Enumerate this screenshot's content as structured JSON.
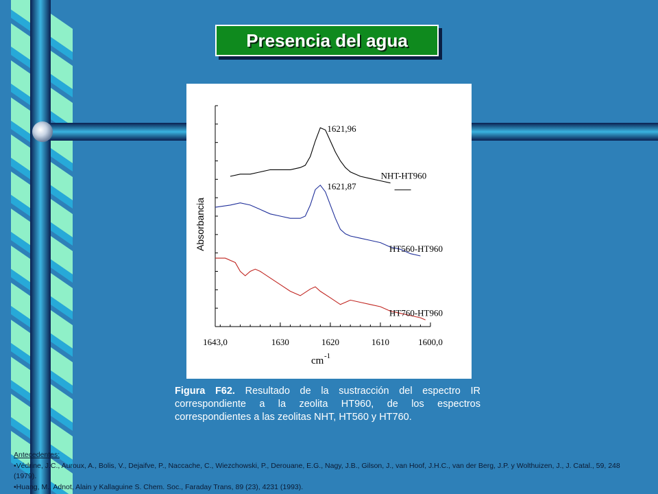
{
  "title": "Presencia del agua",
  "chart_data": {
    "type": "line",
    "ylabel": "Absorbancia",
    "xlabel_base": "cm",
    "xlabel_sup": "-1",
    "x_ticks": [
      {
        "value": 1643.0,
        "label": "1643,0"
      },
      {
        "value": 1630,
        "label": "1630"
      },
      {
        "value": 1620,
        "label": "1620"
      },
      {
        "value": 1610,
        "label": "1610"
      },
      {
        "value": 1600.0,
        "label": "1600,0"
      }
    ],
    "xlim": [
      1643.0,
      1600.0
    ],
    "ylim": [
      0,
      1
    ],
    "series": [
      {
        "name": "NHT-HT960",
        "color": "#000000",
        "peak_label": "1621,96",
        "x": [
          1640,
          1638,
          1636,
          1634,
          1632,
          1630,
          1628,
          1626,
          1625,
          1624,
          1623,
          1622,
          1621,
          1620,
          1619,
          1618,
          1617,
          1616,
          1614,
          1612,
          1610,
          1608
        ],
        "y": [
          0.68,
          0.69,
          0.69,
          0.7,
          0.71,
          0.71,
          0.71,
          0.72,
          0.73,
          0.77,
          0.84,
          0.9,
          0.89,
          0.84,
          0.79,
          0.75,
          0.72,
          0.7,
          0.68,
          0.67,
          0.66,
          0.65
        ]
      },
      {
        "name": "HT560-HT960",
        "color": "#1f2f9a",
        "peak_label": "1621,87",
        "x": [
          1643,
          1640,
          1638,
          1636,
          1634,
          1632,
          1630,
          1628,
          1626,
          1625,
          1624,
          1623,
          1622,
          1621,
          1620,
          1619,
          1618,
          1617,
          1616,
          1614,
          1612,
          1610,
          1608,
          1606,
          1604,
          1602
        ],
        "y": [
          0.54,
          0.55,
          0.56,
          0.55,
          0.53,
          0.51,
          0.5,
          0.49,
          0.49,
          0.5,
          0.55,
          0.62,
          0.64,
          0.61,
          0.55,
          0.49,
          0.44,
          0.42,
          0.41,
          0.4,
          0.39,
          0.38,
          0.36,
          0.35,
          0.33,
          0.32
        ]
      },
      {
        "name": "HT760-HT960",
        "color": "#c0241f",
        "x": [
          1643,
          1641,
          1639,
          1638,
          1637,
          1636,
          1635,
          1634,
          1632,
          1630,
          1628,
          1626,
          1624,
          1623,
          1622,
          1620,
          1618,
          1617,
          1616,
          1614,
          1612,
          1610,
          1608,
          1606,
          1604,
          1602,
          1601
        ],
        "y": [
          0.31,
          0.31,
          0.29,
          0.25,
          0.23,
          0.25,
          0.26,
          0.25,
          0.22,
          0.19,
          0.16,
          0.14,
          0.17,
          0.18,
          0.16,
          0.13,
          0.1,
          0.11,
          0.12,
          0.11,
          0.1,
          0.09,
          0.07,
          0.06,
          0.05,
          0.04,
          0.03
        ]
      }
    ]
  },
  "caption": {
    "label": "Figura F62.",
    "text": " Resultado de la sustracción del espectro IR correspondiente a la zeolita HT960, de los espectros correspondientes a las zeolitas NHT, HT560 y HT760."
  },
  "references": {
    "heading": "Antecedentes:",
    "items": [
      "•Védrine, J.C., Auroux, A., Bolis, V., Dejaifve, P., Naccache, C., Wiezchowski, P., Derouane, E.G., Nagy, J.B., Gilson, J., van Hoof, J.H.C., van der Berg, J.P. y Wolthuizen, J., J. Catal., 59, 248 (1979).",
      "•Huang, M., Adnot, Alain y Kallaguine S. Chem. Soc., Faraday Trans, 89 (23), 4231 (1993)."
    ]
  },
  "colors": {
    "background": "#2e80b8",
    "title_box": "#0f8a1e",
    "bar_dark": "#0c2b63",
    "bar_light": "#3ab3e0",
    "stripe_light": "#8ff0c8",
    "stripe_dark": "#27a9d8"
  }
}
